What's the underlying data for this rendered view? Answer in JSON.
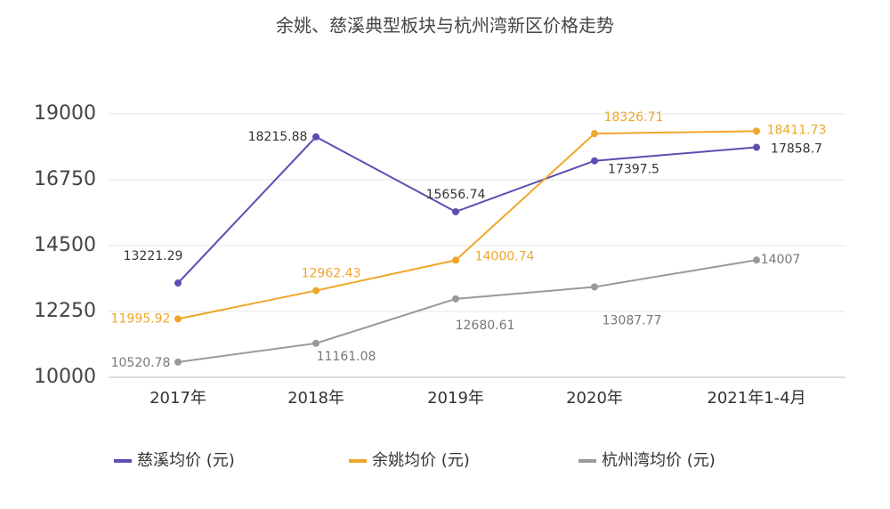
{
  "chart_data": {
    "type": "line",
    "title": "余姚、慈溪典型板块与杭州湾新区价格走势",
    "categories": [
      "2017年",
      "2018年",
      "2019年",
      "2020年",
      "2021年1-4月"
    ],
    "series": [
      {
        "name": "慈溪均价 (元)",
        "color": "#5a4fb3",
        "values": [
          13221.29,
          18215.88,
          15656.74,
          17397.5,
          17858.7
        ]
      },
      {
        "name": "余姚均价 (元)",
        "color": "#f0a62a",
        "values": [
          11995.92,
          12962.43,
          14000.74,
          18326.71,
          18411.73
        ]
      },
      {
        "name": "杭州湾均价 (元)",
        "color": "#999999",
        "values": [
          10520.78,
          11161.08,
          12680.61,
          13087.77,
          14007
        ]
      }
    ],
    "ylim": [
      10000,
      19000
    ],
    "yticks": [
      10000,
      12250,
      14500,
      16750,
      19000
    ],
    "grid": true
  }
}
